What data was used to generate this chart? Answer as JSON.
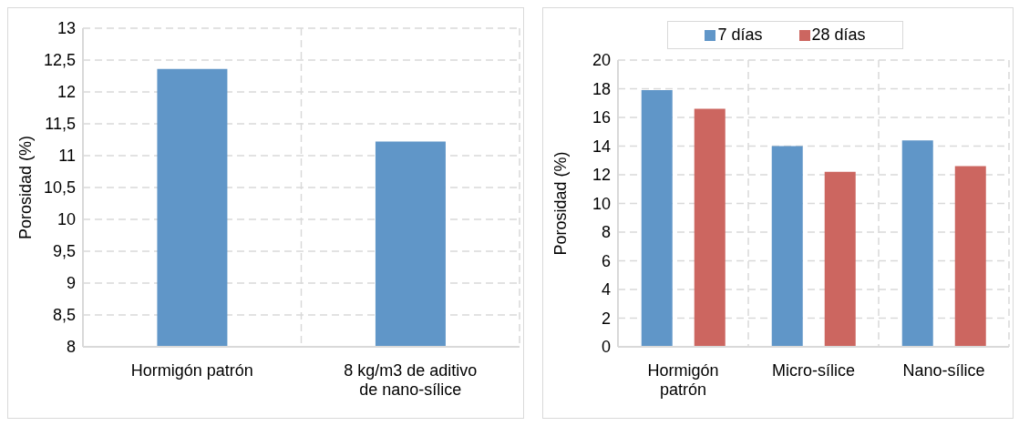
{
  "chart_data": [
    {
      "type": "bar",
      "ylabel": "Porosidad (%)",
      "categories": [
        "Hormigón patrón",
        "8 kg/m3 de aditivo de nano-sílice"
      ],
      "values": [
        12.36,
        11.22
      ],
      "color": "#6096c8",
      "ylim": [
        8,
        13
      ],
      "yticks": [
        8,
        {
          "value": 8.5,
          "label": "8,5"
        },
        9,
        {
          "value": 9.5,
          "label": "9,5"
        },
        10,
        {
          "value": 10.5,
          "label": "10,5"
        },
        11,
        {
          "value": 11.5,
          "label": "11,5"
        },
        12,
        {
          "value": 12.5,
          "label": "12,5"
        },
        13
      ],
      "grid": true
    },
    {
      "type": "bar",
      "ylabel": "Porosidad (%)",
      "categories": [
        "Hormigón patrón",
        "Micro-sílice",
        "Nano-sílice"
      ],
      "series": [
        {
          "name": "7 días",
          "color": "#6096c8",
          "values": [
            17.9,
            14.0,
            14.4
          ]
        },
        {
          "name": "28 días",
          "color": "#cc6660",
          "values": [
            16.6,
            12.2,
            12.6
          ]
        }
      ],
      "ylim": [
        0,
        20
      ],
      "yticks": [
        0,
        2,
        4,
        6,
        8,
        10,
        12,
        14,
        16,
        18,
        20
      ],
      "grid": true,
      "legend": "top"
    }
  ]
}
